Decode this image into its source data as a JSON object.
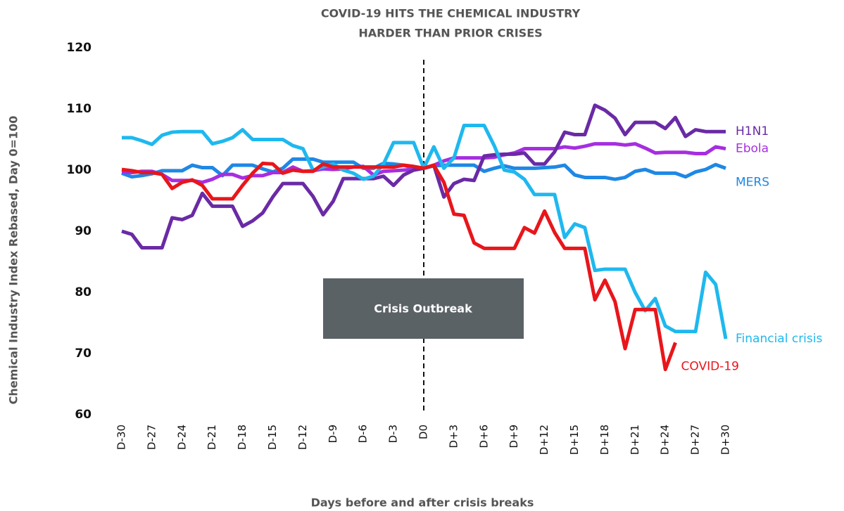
{
  "chart_data": {
    "type": "line",
    "title": [
      "COVID-19 HITS THE CHEMICAL INDUSTRY",
      "HARDER THAN PRIOR CRISES"
    ],
    "xlabel": "Days before and after crisis breaks",
    "ylabel": "Chemical Industry Index Rebased, Day 0=100",
    "annotation": {
      "text": "Crisis Outbreak",
      "x": "D0"
    },
    "categories": [
      "D-30",
      null,
      null,
      "D-27",
      null,
      null,
      "D-24",
      null,
      null,
      "D-21",
      null,
      null,
      "D-18",
      null,
      null,
      "D-15",
      null,
      null,
      "D-12",
      null,
      null,
      "D-9",
      null,
      null,
      "D-6",
      null,
      null,
      "D-3",
      null,
      null,
      "D0",
      null,
      null,
      "D+3",
      null,
      null,
      "D+6",
      null,
      null,
      "D+9",
      null,
      null,
      "D+12",
      null,
      null,
      "D+15",
      null,
      null,
      "D+18",
      null,
      null,
      "D+21",
      null,
      null,
      "D+24",
      null,
      null,
      "D+27",
      null,
      null,
      "D+30"
    ],
    "ylim": [
      60,
      120
    ],
    "yticks": [
      60,
      70,
      80,
      90,
      100,
      110,
      120
    ],
    "grid": false,
    "series": [
      {
        "name": "MERS",
        "color": "#1e88e5",
        "values": [
          99.5,
          98.9,
          99.1,
          99.4,
          99.9,
          99.9,
          99.9,
          100.8,
          100.4,
          100.4,
          99.1,
          100.8,
          100.8,
          100.8,
          100.2,
          99.7,
          100.3,
          101.8,
          101.8,
          101.8,
          101.3,
          101.3,
          101.3,
          101.3,
          100.3,
          100.3,
          101.1,
          101,
          100.8,
          100.3,
          100.3,
          100.7,
          100.8,
          100.8,
          100.8,
          100.8,
          99.8,
          100.3,
          100.7,
          100.3,
          100.3,
          100.3,
          100.4,
          100.5,
          100.8,
          99.2,
          98.8,
          98.8,
          98.8,
          98.5,
          98.8,
          99.8,
          100.1,
          99.5,
          99.5,
          99.5,
          98.9,
          99.7,
          100.1,
          100.9,
          100.3
        ]
      },
      {
        "name": "Ebola",
        "color": "#a62ee0",
        "values": [
          99.7,
          99.6,
          99.8,
          99.8,
          99.3,
          98.3,
          98.3,
          98.3,
          98,
          98.5,
          99.3,
          99.3,
          98.7,
          99.1,
          99.1,
          99.6,
          99.6,
          100.5,
          99.8,
          99.9,
          100.2,
          100.1,
          100.2,
          100.5,
          100.6,
          99.2,
          99.8,
          99.9,
          100,
          100.1,
          100.3,
          100.8,
          101.5,
          102,
          102,
          102,
          102,
          102.1,
          102.5,
          102.8,
          103.5,
          103.5,
          103.5,
          103.5,
          103.8,
          103.6,
          103.9,
          104.3,
          104.3,
          104.3,
          104.1,
          104.3,
          103.6,
          102.8,
          102.9,
          102.9,
          102.9,
          102.7,
          102.7,
          103.8,
          103.5
        ]
      },
      {
        "name": "H1N1",
        "color": "#6a2aa5",
        "values": [
          90,
          89.5,
          87.3,
          87.3,
          87.3,
          92.2,
          91.9,
          92.6,
          96.2,
          94.1,
          94.1,
          94.1,
          90.8,
          91.7,
          93,
          95.6,
          97.8,
          97.8,
          97.8,
          95.7,
          92.7,
          94.9,
          98.6,
          98.6,
          98.6,
          98.6,
          99,
          97.5,
          99.2,
          100,
          100.3,
          100.8,
          95.6,
          97.8,
          98.5,
          98.3,
          102.3,
          102.5,
          102.6,
          102.6,
          102.8,
          101,
          101,
          103,
          106.2,
          105.8,
          105.8,
          110.6,
          109.8,
          108.5,
          105.8,
          107.8,
          107.8,
          107.8,
          106.8,
          108.6,
          105.5,
          106.6,
          106.3,
          106.3,
          106.3
        ]
      },
      {
        "name": "Financial crisis",
        "color": "#1fb8ee",
        "values": [
          105.3,
          105.3,
          104.8,
          104.2,
          105.7,
          106.2,
          106.3,
          106.3,
          106.3,
          104.3,
          104.7,
          105.3,
          106.6,
          105,
          105,
          105,
          105,
          104,
          103.5,
          100,
          100.5,
          101,
          100,
          99.5,
          98.5,
          99,
          101,
          104.5,
          104.5,
          104.5,
          100.3,
          103.8,
          100.3,
          102,
          107.3,
          107.3,
          107.3,
          104,
          100,
          99.7,
          98.5,
          96,
          96,
          96,
          89,
          91.2,
          90.6,
          83.6,
          83.8,
          83.8,
          83.8,
          80,
          77,
          79,
          74.5,
          73.6,
          73.6,
          73.6,
          83.3,
          81.3,
          72.4
        ]
      },
      {
        "name": "COVID-19",
        "color": "#e8161b",
        "values": [
          100.1,
          99.9,
          99.6,
          99.6,
          99.3,
          97,
          98,
          98.4,
          97.5,
          95.3,
          95.3,
          95.3,
          97.5,
          99.5,
          101.1,
          101,
          99.5,
          100,
          99.8,
          99.8,
          101,
          100.5,
          100.5,
          100.5,
          100.5,
          100.5,
          100.5,
          100.5,
          100.8,
          100.6,
          100.3,
          100.8,
          98,
          92.8,
          92.6,
          88.1,
          87.2,
          87.2,
          87.2,
          87.2,
          90.6,
          89.7,
          93.3,
          89.8,
          87.2,
          87.2,
          87.2,
          78.8,
          82,
          78.5,
          70.8,
          77.2,
          77.2,
          77.2,
          67.4,
          71.8,
          null,
          null,
          null,
          null,
          null
        ]
      }
    ]
  }
}
